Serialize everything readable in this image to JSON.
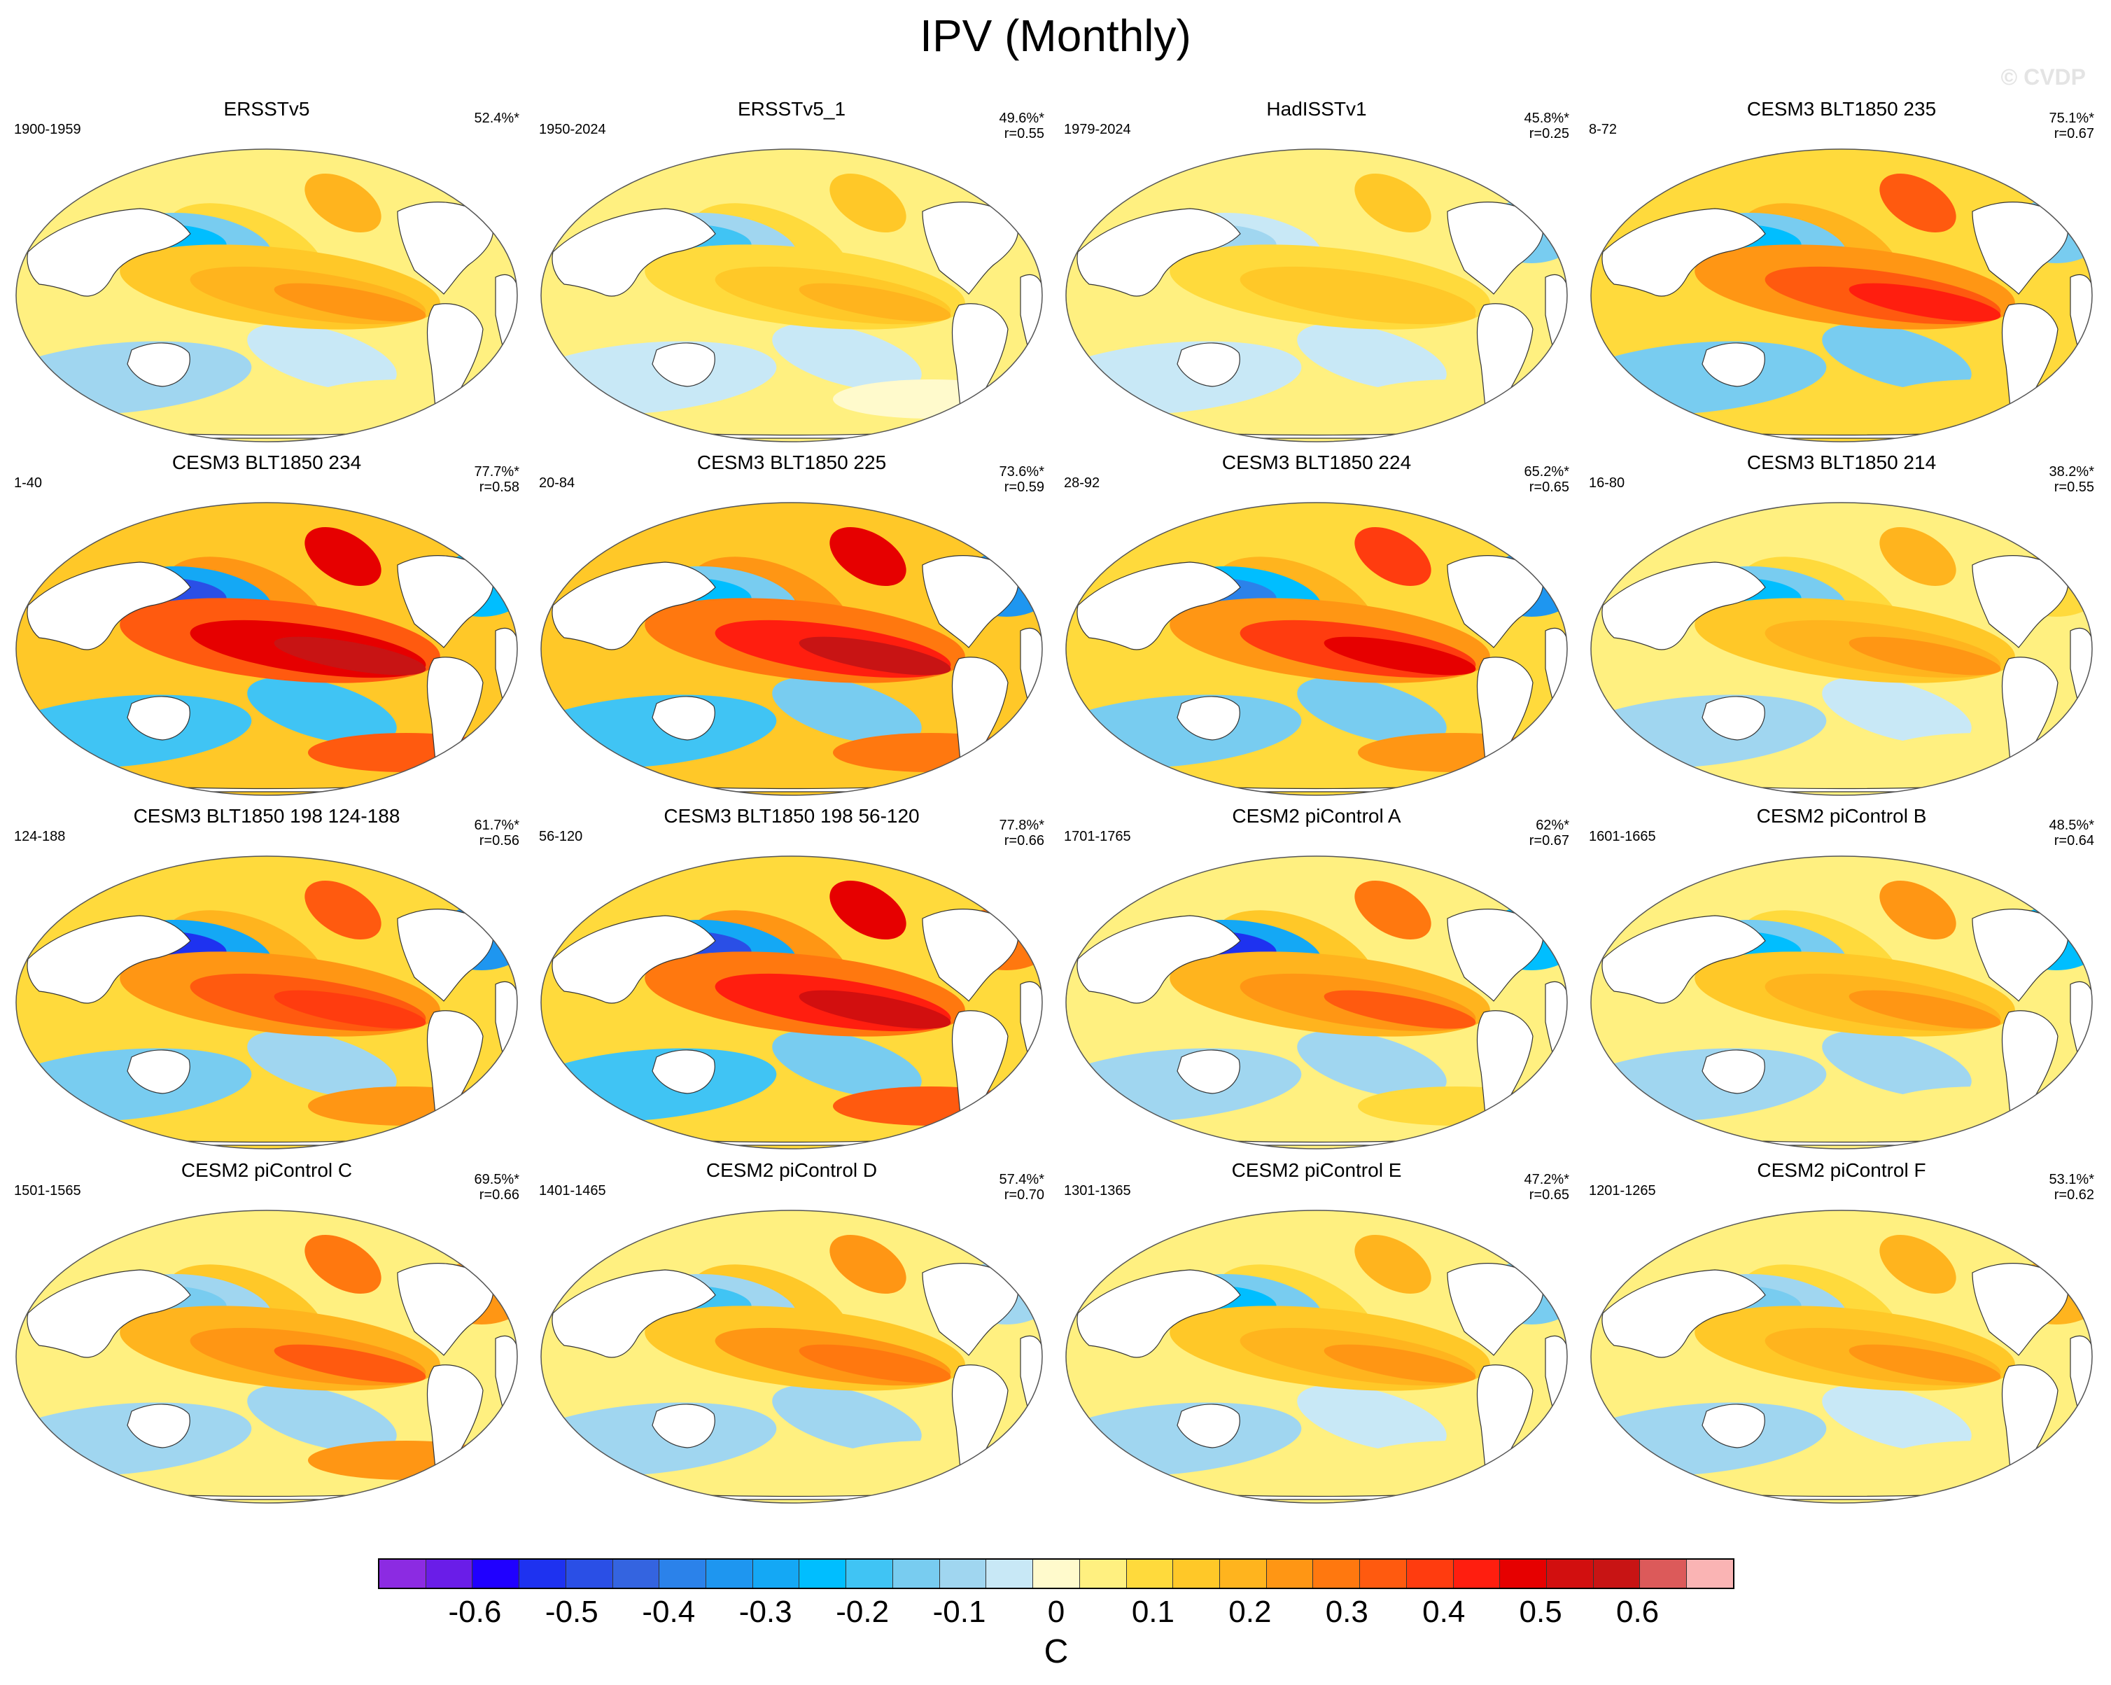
{
  "figure": {
    "title": "IPV (Monthly)",
    "watermark": "© CVDP"
  },
  "panels": [
    {
      "title": "ERSSTv5",
      "period": "1900-1959",
      "pct": "52.4%*",
      "r": "",
      "amp": 0.24,
      "north_pacific": -0.22,
      "north_atlantic": 0.06,
      "southern": 0.04
    },
    {
      "title": "ERSSTv5_1",
      "period": "1950-2024",
      "pct": "49.6%*",
      "r": "r=0.55",
      "amp": 0.18,
      "north_pacific": -0.18,
      "north_atlantic": 0.04,
      "southern": -0.02
    },
    {
      "title": "HadISSTv1",
      "period": "1979-2024",
      "pct": "45.8%*",
      "r": "r=0.25",
      "amp": 0.16,
      "north_pacific": -0.1,
      "north_atlantic": -0.14,
      "southern": 0.04
    },
    {
      "title": "CESM3 BLT1850 235",
      "period": "8-72",
      "pct": "75.1%*",
      "r": "r=0.67",
      "amp": 0.42,
      "north_pacific": -0.24,
      "north_atlantic": -0.16,
      "southern": 0.12
    },
    {
      "title": "CESM3 BLT1850 234",
      "period": "1-40",
      "pct": "77.7%*",
      "r": "r=0.58",
      "amp": 0.58,
      "north_pacific": -0.5,
      "north_atlantic": -0.26,
      "southern": 0.34
    },
    {
      "title": "CESM3 BLT1850 225",
      "period": "20-84",
      "pct": "73.6%*",
      "r": "r=0.59",
      "amp": 0.56,
      "north_pacific": -0.22,
      "north_atlantic": -0.36,
      "southern": 0.3
    },
    {
      "title": "CESM3 BLT1850 224",
      "period": "28-92",
      "pct": "65.2%*",
      "r": "r=0.65",
      "amp": 0.48,
      "north_pacific": -0.4,
      "north_atlantic": -0.32,
      "southern": 0.26
    },
    {
      "title": "CESM3 BLT1850 214",
      "period": "16-80",
      "pct": "38.2%*",
      "r": "r=0.55",
      "amp": 0.24,
      "north_pacific": -0.24,
      "north_atlantic": 0.1,
      "southern": 0.04
    },
    {
      "title": "CESM3 BLT1850 198 124-188",
      "period": "124-188",
      "pct": "61.7%*",
      "r": "r=0.56",
      "amp": 0.4,
      "north_pacific": -0.52,
      "north_atlantic": -0.36,
      "southern": 0.24
    },
    {
      "title": "CESM3 BLT1850 198 56-120",
      "period": "56-120",
      "pct": "77.8%*",
      "r": "r=0.66",
      "amp": 0.54,
      "north_pacific": -0.46,
      "north_atlantic": 0.3,
      "southern": 0.34
    },
    {
      "title": "CESM2 piControl A",
      "period": "1701-1765",
      "pct": "62%*",
      "r": "r=0.67",
      "amp": 0.32,
      "north_pacific": -0.52,
      "north_atlantic": -0.22,
      "southern": 0.08
    },
    {
      "title": "CESM2 piControl B",
      "period": "1601-1665",
      "pct": "48.5%*",
      "r": "r=0.64",
      "amp": 0.26,
      "north_pacific": -0.24,
      "north_atlantic": -0.22,
      "southern": 0.04
    },
    {
      "title": "CESM2 piControl C",
      "period": "1501-1565",
      "pct": "69.5%*",
      "r": "r=0.66",
      "amp": 0.32,
      "north_pacific": -0.16,
      "north_atlantic": 0.24,
      "southern": 0.24
    },
    {
      "title": "CESM2 piControl D",
      "period": "1401-1465",
      "pct": "57.4%*",
      "r": "r=0.70",
      "amp": 0.3,
      "north_pacific": -0.18,
      "north_atlantic": -0.12,
      "southern": 0.06
    },
    {
      "title": "CESM2 piControl E",
      "period": "1301-1365",
      "pct": "47.2%*",
      "r": "r=0.65",
      "amp": 0.24,
      "north_pacific": -0.24,
      "north_atlantic": -0.14,
      "southern": 0.04
    },
    {
      "title": "CESM2 piControl F",
      "period": "1201-1265",
      "pct": "53.1%*",
      "r": "r=0.62",
      "amp": 0.24,
      "north_pacific": -0.16,
      "north_atlantic": 0.2,
      "southern": 0.04
    }
  ],
  "colorbar": {
    "units": "C",
    "min": -0.7,
    "max": 0.7,
    "colors": [
      "#8c2be2",
      "#6a1de8",
      "#2000ff",
      "#1e32f0",
      "#2a4fe6",
      "#3464e0",
      "#2b82ea",
      "#1e96f0",
      "#14a8f5",
      "#00beff",
      "#40c4f4",
      "#78ccf0",
      "#a0d6f0",
      "#c8e8f6",
      "#fffacc",
      "#fff080",
      "#ffda3c",
      "#ffc828",
      "#ffb41e",
      "#ff9614",
      "#ff780f",
      "#ff5a0f",
      "#ff3c0f",
      "#ff1e0f",
      "#e60000",
      "#d20f0f",
      "#c81414",
      "#dc5a5a",
      "#fab4b4"
    ],
    "ticks": [
      "-0.6",
      "-0.5",
      "-0.4",
      "-0.3",
      "-0.2",
      "-0.1",
      "0",
      "0.1",
      "0.2",
      "0.3",
      "0.4",
      "0.5",
      "0.6"
    ]
  }
}
